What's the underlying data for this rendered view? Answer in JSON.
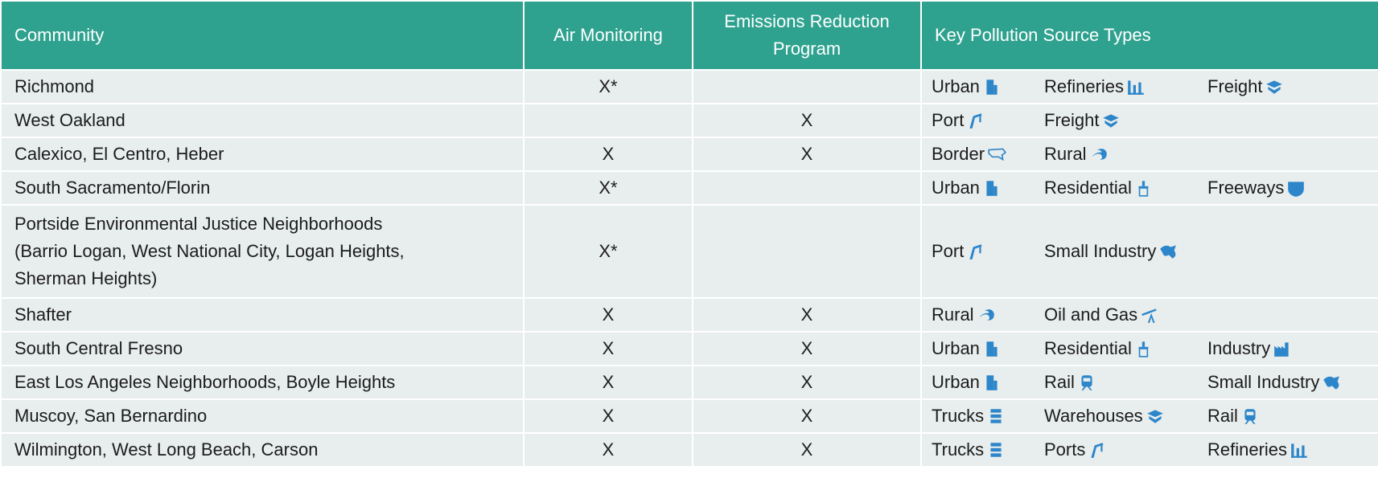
{
  "header": [
    "Community",
    "Air Monitoring",
    "Emissions Reduction Program",
    "Key Pollution Source Types"
  ],
  "rows": [
    {
      "community": [
        "Richmond"
      ],
      "air_monitoring": "X*",
      "sources": [
        "Urban",
        "Refineries",
        "Freight"
      ]
    },
    {
      "community": [
        "West Oakland"
      ],
      "emissions_reduction": "X",
      "sources": [
        "Port",
        "Freight"
      ]
    },
    {
      "community": [
        "Calexico, El Centro, Heber"
      ],
      "air_monitoring": "X",
      "emissions_reduction": "X",
      "sources": [
        "Border",
        "Rural"
      ]
    },
    {
      "community": [
        "South Sacramento/Florin"
      ],
      "air_monitoring": "X*",
      "sources": [
        "Urban",
        "Residential",
        "Freeways"
      ]
    },
    {
      "community": [
        "Portside Environmental Justice Neighborhoods",
        "(Barrio Logan, West National City, Logan Heights,",
        "Sherman Heights)"
      ],
      "air_monitoring": "X*",
      "sources": [
        "Port",
        "Small Industry"
      ]
    },
    {
      "community": [
        "Shafter"
      ],
      "air_monitoring": "X",
      "emissions_reduction": "X",
      "sources": [
        "Rural",
        "Oil and Gas"
      ]
    },
    {
      "community": [
        "South Central Fresno"
      ],
      "air_monitoring": "X",
      "emissions_reduction": "X",
      "sources": [
        "Urban",
        "Residential",
        "Industry"
      ]
    },
    {
      "community": [
        "East Los Angeles Neighborhoods, Boyle Heights"
      ],
      "air_monitoring": "X",
      "emissions_reduction": "X",
      "sources": [
        "Urban",
        "Rail",
        "Small Industry"
      ]
    },
    {
      "community": [
        "Muscoy, San Bernardino"
      ],
      "air_monitoring": "X",
      "emissions_reduction": "X",
      "sources": [
        "Trucks",
        "Warehouses",
        "Rail"
      ]
    },
    {
      "community": [
        "Wilmington, West Long Beach, Carson"
      ],
      "air_monitoring": "X",
      "emissions_reduction": "X",
      "sources": [
        "Trucks",
        "Ports",
        "Refineries"
      ]
    }
  ]
}
